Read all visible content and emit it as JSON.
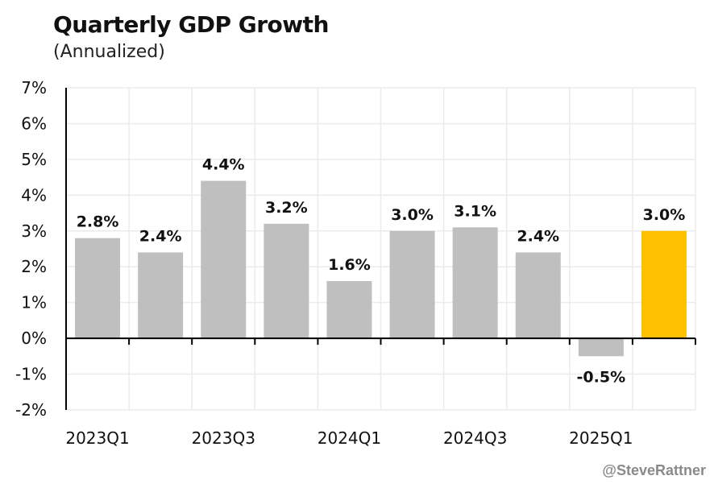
{
  "chart_data": {
    "type": "bar",
    "title": "Quarterly GDP Growth",
    "subtitle": "(Annualized)",
    "x_tick_labels": [
      "2023Q1",
      "",
      "2023Q3",
      "",
      "2024Q1",
      "",
      "2024Q3",
      "",
      "2025Q1",
      ""
    ],
    "values": [
      2.8,
      2.4,
      4.4,
      3.2,
      1.6,
      3.0,
      3.1,
      2.4,
      -0.5,
      3.0
    ],
    "data_labels": [
      "2.8%",
      "2.4%",
      "4.4%",
      "3.2%",
      "1.6%",
      "3.0%",
      "3.1%",
      "2.4%",
      "-0.5%",
      "3.0%"
    ],
    "y_tick_labels": [
      "7%",
      "6%",
      "5%",
      "4%",
      "3%",
      "2%",
      "1%",
      "0%",
      "-1%",
      "-2%"
    ],
    "ylim": [
      -2,
      7
    ],
    "grid": true,
    "bar_color": "#bfbfbf",
    "highlight_color": "#ffc000",
    "highlight_index": 9
  },
  "credit": "@SteveRattner"
}
